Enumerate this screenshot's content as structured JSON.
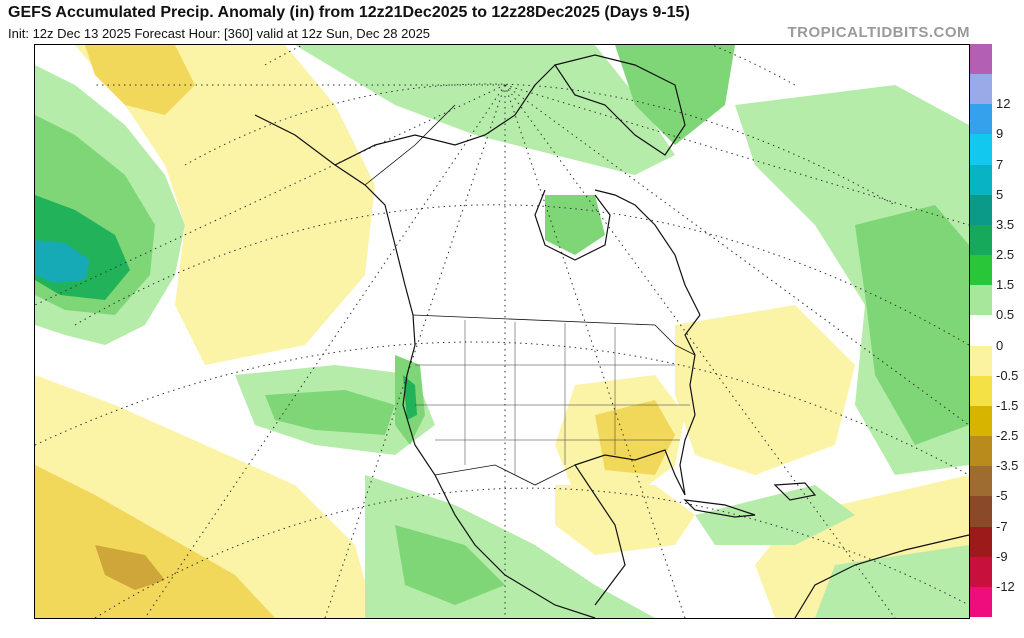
{
  "header": {
    "title": "GEFS Accumulated Precip. Anomaly (in) from 12z21Dec2025 to 12z28Dec2025 (Days 9-15)",
    "subtitle": "Init: 12z Dec 13 2025   Forecast Hour: [360]   valid at 12z Sun, Dec 28 2025",
    "brand": "TROPICALTIDBITS.COM"
  },
  "legend": {
    "entries": [
      {
        "label": "",
        "color": "#b35fb4"
      },
      {
        "label": "12",
        "color": "#9aa9e8"
      },
      {
        "label": "9",
        "color": "#35a0ec"
      },
      {
        "label": "7",
        "color": "#13c8ef"
      },
      {
        "label": "5",
        "color": "#08b3c4"
      },
      {
        "label": "3.5",
        "color": "#0c9a88"
      },
      {
        "label": "2.5",
        "color": "#16a95c"
      },
      {
        "label": "1.5",
        "color": "#29c63a"
      },
      {
        "label": "0.5",
        "color": "#a6e79c"
      },
      {
        "label": "0",
        "color": "#ffffff"
      },
      {
        "label": "-0.5",
        "color": "#fbf3a0"
      },
      {
        "label": "-1.5",
        "color": "#f4e145"
      },
      {
        "label": "-2.5",
        "color": "#d7b400"
      },
      {
        "label": "-3.5",
        "color": "#b98b1c"
      },
      {
        "label": "-5",
        "color": "#9e6b30"
      },
      {
        "label": "-7",
        "color": "#8a4a2a"
      },
      {
        "label": "-9",
        "color": "#9c1a1a"
      },
      {
        "label": "-12",
        "color": "#c8103c"
      },
      {
        "label": "",
        "color": "#ef0c7c"
      }
    ]
  },
  "colors": {
    "light_green": "#b6ecaa",
    "green": "#7fd676",
    "dark_green": "#22b35a",
    "teal": "#16a9b6",
    "light_yellow": "#fbf3a6",
    "yellow": "#f1d75a",
    "tan": "#cfa63a",
    "outline": "#111111",
    "graticule": "#333333"
  }
}
